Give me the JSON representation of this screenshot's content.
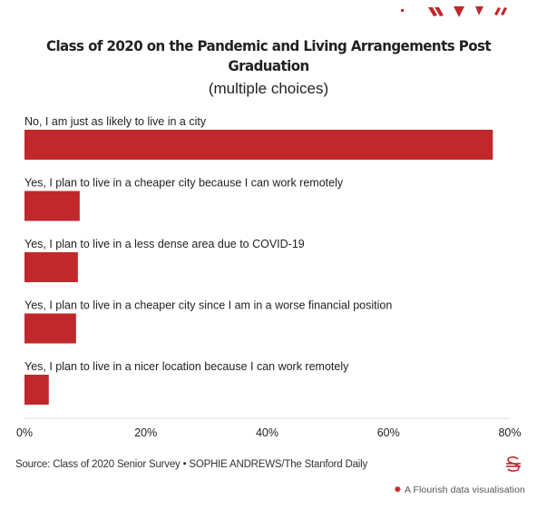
{
  "chart_data": {
    "type": "bar",
    "orientation": "horizontal",
    "title": "Class of 2020 on the Pandemic and Living Arrangements Post Graduation",
    "title_lines": [
      "Class of 2020 on the Pandemic and Living Arrangements Post",
      "Graduation"
    ],
    "subtitle": "(multiple choices)",
    "categories": [
      "No, I am just as likely to live in a city",
      "Yes, I plan to live in a cheaper city because I can work remotely",
      "Yes, I plan to live in a less dense area due to COVID-19",
      "Yes, I plan to live in a cheaper city since I am in a worse financial position",
      "Yes, I plan to live in a nicer location because I can work remotely"
    ],
    "values": [
      77.2,
      9.1,
      8.8,
      8.5,
      4.0
    ],
    "xlim": [
      0,
      80
    ],
    "xticks": [
      0,
      20,
      40,
      60,
      80
    ],
    "tick_labels": [
      "0%",
      "20%",
      "40%",
      "60%",
      "80%"
    ],
    "bar_color": "#c0282c",
    "grid": false,
    "legend": "none"
  },
  "footer": {
    "source": "Source: Class of 2020 Senior Survey • SOPHIE ANDREWS/The Stanford Daily",
    "credit": "A Flourish data visualisation"
  },
  "colors": {
    "accent": "#c0282c",
    "text": "#222222"
  }
}
